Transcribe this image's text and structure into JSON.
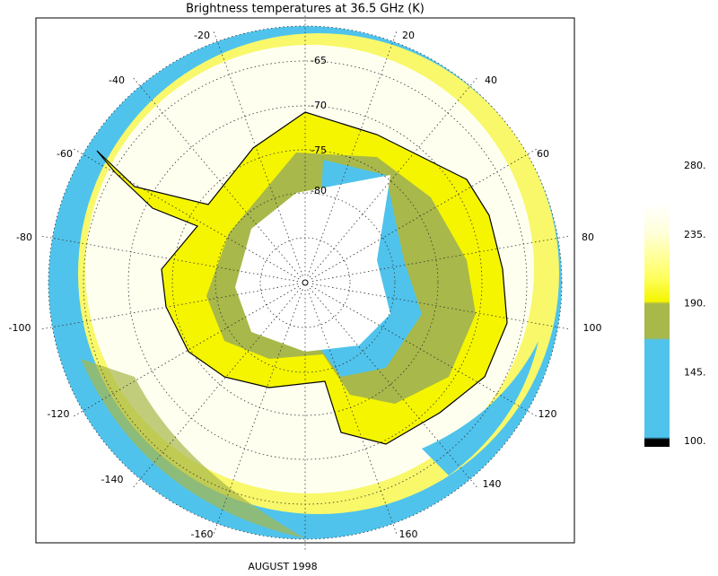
{
  "title": "Brightness temperatures at 36.5 GHz (K)",
  "date": "AUGUST 1998",
  "longitude_labels": [
    "-20",
    "20",
    "-40",
    "40",
    "-60",
    "60",
    "-80",
    "80",
    "-100",
    "100",
    "-120",
    "120",
    "-140",
    "140",
    "-160",
    "160"
  ],
  "latitude_labels": [
    "-65",
    "-70",
    "-75",
    "-80"
  ],
  "colorbar": {
    "lim": [
      100,
      280
    ],
    "ticks": [
      {
        "value": 280,
        "label": "280."
      },
      {
        "value": 235,
        "label": "235."
      },
      {
        "value": 190,
        "label": "190."
      },
      {
        "value": 145,
        "label": "145."
      },
      {
        "value": 100,
        "label": "100."
      }
    ]
  }
}
